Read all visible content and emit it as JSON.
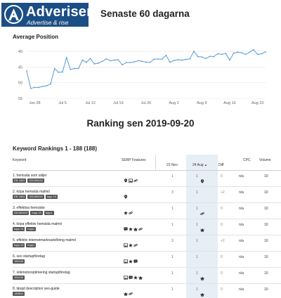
{
  "header": {
    "logo_name": "Adveriser",
    "logo_tagline": "Advertise & rise",
    "title": "Senaste 60 dagarna"
  },
  "chart_data": {
    "type": "line",
    "title": "Average Position",
    "xlabel": "",
    "ylabel": "",
    "ylim": [
      55,
      38
    ],
    "y_reversed": true,
    "yticks": [
      "40",
      "45",
      "50",
      "55"
    ],
    "xticks": [
      "Jun 28",
      "Jul 5",
      "Jul 12",
      "Jul 19",
      "Jul 26",
      "Aug 2",
      "Aug 9",
      "Aug 16",
      "Aug 23"
    ],
    "x_start_label": "Jun 26",
    "color": "#5b9bd5",
    "grid": true,
    "series": [
      {
        "values": [
          46.3,
          51.8,
          51.5,
          51.5,
          51.2,
          51,
          50.4,
          45.5,
          46.7,
          46.6,
          42,
          45.8,
          45.5,
          45.5,
          42.8,
          43.5,
          42.3,
          44,
          43.8,
          43.2,
          42.4,
          43,
          42.8,
          42.7,
          44.3,
          43.6,
          43.6,
          43.4,
          43,
          43.2,
          43.5,
          43.5,
          42.5,
          42.5,
          42.5,
          41.3,
          43.5,
          42.9,
          42.7,
          42.8,
          42.6,
          42.4,
          40,
          41.7,
          41.8,
          42.3,
          41.6,
          41.7,
          40.8,
          41,
          40.7,
          42.8,
          40.6,
          40.3,
          40.5,
          41,
          40.3,
          39.5,
          41,
          40.8,
          40.2
        ]
      }
    ]
  },
  "ranking_title": "Ranking sen 2019-09-20",
  "keywords": {
    "title": "Keyword Rankings   1 - 188 (188)",
    "headers": {
      "keyword": "Keyword",
      "serp": "SERP Features",
      "date1": "23 Nov",
      "date2": "24 Aug",
      "sort_arrow": "▲",
      "diff": "Diff",
      "cpc": "CPC",
      "volume": "Volume"
    },
    "rows": [
      {
        "name": "1. hemsida som säljer",
        "tags": [
          "EB 1802",
          "GD180419"
        ],
        "serp_icons": [
          "location-pin-icon",
          "image-icon",
          "link-icon"
        ],
        "date1": "1",
        "date2": "1",
        "date2_icon": "location-pin-icon",
        "diff": "0",
        "cpc": "n/a",
        "volume": "10"
      },
      {
        "name": "2. köpa hemsida malmö",
        "tags": [
          "EB 1802",
          "GD180419",
          "topp 13"
        ],
        "serp_icons": [
          "location-pin-icon"
        ],
        "date1": "3",
        "date2": "1",
        "date2_icon": "",
        "diff": "+2",
        "cpc": "n/a",
        "volume": "10"
      },
      {
        "name": "3. effektiva hemsidor",
        "tags": [
          "GD180419",
          "topp 13",
          "topp1"
        ],
        "serp_icons": [
          "star-icon",
          "link-icon"
        ],
        "date1": "1",
        "date2": "1",
        "date2_icon": "link-icon",
        "diff": "0",
        "cpc": "n/a",
        "volume": "10"
      },
      {
        "name": "4. köpa effektiv hemsida malmö",
        "tags": [
          "topp 13",
          "topp1"
        ],
        "serp_icons": [
          "review-icon",
          "star-icon",
          "crown-icon",
          "link-icon"
        ],
        "date1": "1",
        "date2": "1",
        "date2_icon": "crown-icon",
        "diff": "0",
        "cpc": "n/a",
        "volume": "10"
      },
      {
        "name": "5. effektiv internetmarknadsföring malmö",
        "tags": [
          "topp 13",
          "topp1"
        ],
        "serp_icons": [
          "image-icon",
          "star-icon",
          "link-icon"
        ],
        "date1": "3",
        "date2": "1",
        "date2_icon": "",
        "diff": "+2",
        "cpc": "n/a",
        "volume": "10"
      },
      {
        "name": "6. seo startupföretag",
        "tags": [
          "181106"
        ],
        "serp_icons": [
          "image-icon",
          "star-icon",
          "review-icon"
        ],
        "date1": "1",
        "date2": "1",
        "date2_icon": "",
        "diff": "0",
        "cpc": "n/a",
        "volume": "10"
      },
      {
        "name": "7. sökmotoroptimering startupföretag",
        "tags": [
          "181106"
        ],
        "serp_icons": [
          "image-icon",
          "review-icon",
          "star-icon",
          "crown-icon"
        ],
        "date1": "1",
        "date2": "1",
        "date2_icon": "crown-icon",
        "diff": "0",
        "cpc": "n/a",
        "volume": "10"
      },
      {
        "name": "8. längd description seo-guide",
        "tags": [
          "190611"
        ],
        "serp_icons": [
          "crown-icon",
          "link-icon"
        ],
        "date1": "1",
        "date2": "1",
        "date2_icon": "crown-icon",
        "diff": "0",
        "cpc": "n/a",
        "volume": "10"
      }
    ]
  }
}
